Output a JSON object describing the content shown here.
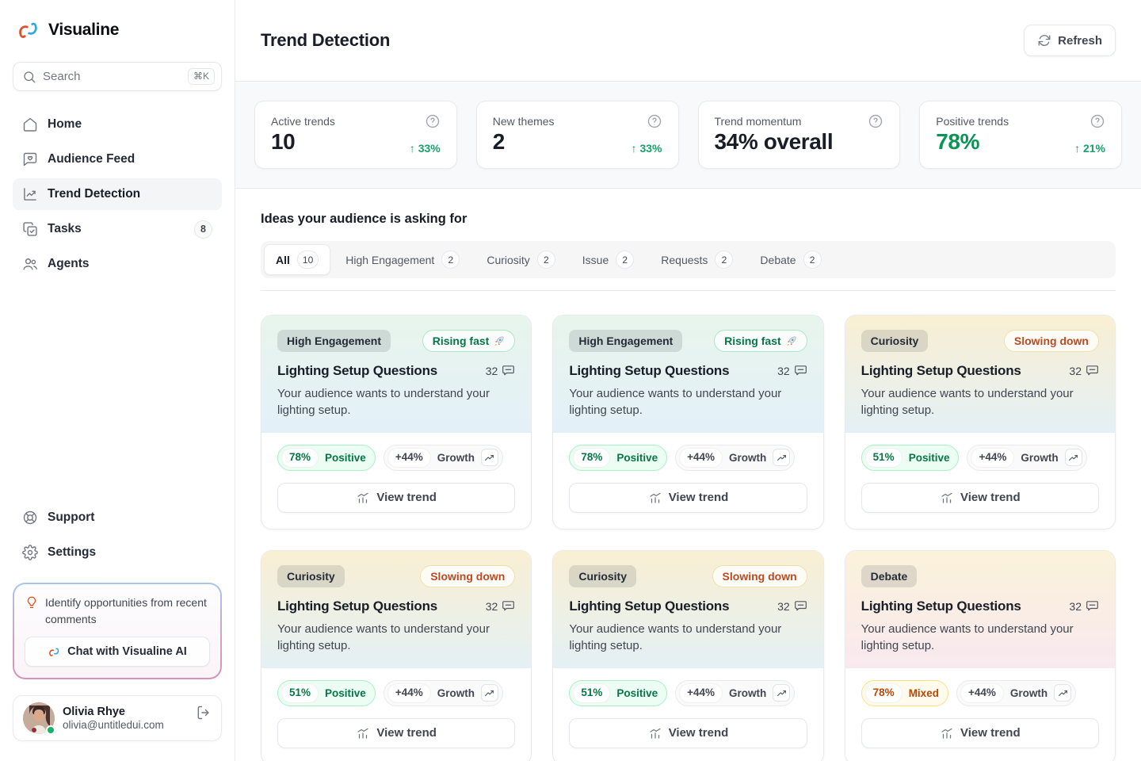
{
  "brand": {
    "name": "Visualine"
  },
  "search": {
    "placeholder": "Search",
    "shortcut": "⌘K"
  },
  "sidebar": {
    "items": [
      {
        "label": "Home",
        "icon": "home",
        "active": false,
        "badge": null
      },
      {
        "label": "Audience Feed",
        "icon": "audience-feed",
        "active": false,
        "badge": null
      },
      {
        "label": "Trend Detection",
        "icon": "trend-detection",
        "active": true,
        "badge": null
      },
      {
        "label": "Tasks",
        "icon": "tasks",
        "active": false,
        "badge": "8"
      },
      {
        "label": "Agents",
        "icon": "agents",
        "active": false,
        "badge": null
      }
    ],
    "footer_items": [
      {
        "label": "Support",
        "icon": "support"
      },
      {
        "label": "Settings",
        "icon": "settings"
      }
    ]
  },
  "ai_card": {
    "prompt": "Identify opportunities from recent comments",
    "button_label": "Chat with Visualine AI"
  },
  "user": {
    "name": "Olivia Rhye",
    "email": "olivia@untitledui.com",
    "status": "online"
  },
  "header": {
    "title": "Trend Detection",
    "refresh_label": "Refresh"
  },
  "stats": [
    {
      "label": "Active trends",
      "value": "10",
      "delta": "33%",
      "delta_dir": "up",
      "value_color": "dark"
    },
    {
      "label": "New themes",
      "value": "2",
      "delta": "33%",
      "delta_dir": "up",
      "value_color": "dark"
    },
    {
      "label": "Trend momentum",
      "value": "34% overall",
      "delta": null,
      "delta_dir": null,
      "value_color": "dark"
    },
    {
      "label": "Positive trends",
      "value": "78%",
      "delta": "21%",
      "delta_dir": "up",
      "value_color": "green"
    }
  ],
  "ideas": {
    "title": "Ideas your audience is asking for",
    "tabs": [
      {
        "label": "All",
        "count": "10",
        "active": true
      },
      {
        "label": "High Engagement",
        "count": "2",
        "active": false
      },
      {
        "label": "Curiosity",
        "count": "2",
        "active": false
      },
      {
        "label": "Issue",
        "count": "2",
        "active": false
      },
      {
        "label": "Requests",
        "count": "2",
        "active": false
      },
      {
        "label": "Debate",
        "count": "2",
        "active": false
      }
    ],
    "cards": [
      {
        "category": "High Engagement",
        "trend_label": "Rising fast",
        "trend_icon": "rocket",
        "trend_style": "up",
        "title": "Lighting Setup Questions",
        "comments": "32",
        "description": "Your audience wants to understand your lighting setup.",
        "sentiment_pct": "78%",
        "sentiment_label": "Positive",
        "sentiment_style": "positive",
        "growth_pct": "+44%",
        "growth_label": "Growth",
        "action_label": "View trend",
        "gradient": "green"
      },
      {
        "category": "High Engagement",
        "trend_label": "Rising fast",
        "trend_icon": "rocket",
        "trend_style": "up",
        "title": "Lighting Setup Questions",
        "comments": "32",
        "description": "Your audience wants to understand your lighting setup.",
        "sentiment_pct": "78%",
        "sentiment_label": "Positive",
        "sentiment_style": "positive",
        "growth_pct": "+44%",
        "growth_label": "Growth",
        "action_label": "View trend",
        "gradient": "green"
      },
      {
        "category": "Curiosity",
        "trend_label": "Slowing down",
        "trend_icon": null,
        "trend_style": "down",
        "title": "Lighting Setup Questions",
        "comments": "32",
        "description": "Your audience wants to understand your lighting setup.",
        "sentiment_pct": "51%",
        "sentiment_label": "Positive",
        "sentiment_style": "positive",
        "growth_pct": "+44%",
        "growth_label": "Growth",
        "action_label": "View trend",
        "gradient": "yellow-blue"
      },
      {
        "category": "Curiosity",
        "trend_label": "Slowing down",
        "trend_icon": null,
        "trend_style": "down",
        "title": "Lighting Setup Questions",
        "comments": "32",
        "description": "Your audience wants to understand your lighting setup.",
        "sentiment_pct": "51%",
        "sentiment_label": "Positive",
        "sentiment_style": "positive",
        "growth_pct": "+44%",
        "growth_label": "Growth",
        "action_label": "View trend",
        "gradient": "yellow-blue"
      },
      {
        "category": "Curiosity",
        "trend_label": "Slowing down",
        "trend_icon": null,
        "trend_style": "down",
        "title": "Lighting Setup Questions",
        "comments": "32",
        "description": "Your audience wants to understand your lighting setup.",
        "sentiment_pct": "51%",
        "sentiment_label": "Positive",
        "sentiment_style": "positive",
        "growth_pct": "+44%",
        "growth_label": "Growth",
        "action_label": "View trend",
        "gradient": "yellow-blue"
      },
      {
        "category": "Debate",
        "trend_label": null,
        "trend_icon": null,
        "trend_style": null,
        "title": "Lighting Setup Questions",
        "comments": "32",
        "description": "Your audience wants to understand your lighting setup.",
        "sentiment_pct": "78%",
        "sentiment_label": "Mixed",
        "sentiment_style": "mixed",
        "growth_pct": "+44%",
        "growth_label": "Growth",
        "action_label": "View trend",
        "gradient": "yellow-pink"
      }
    ]
  },
  "colors": {
    "accent_green": "#079455",
    "delta_green": "#17a06a",
    "positive_text": "#067647",
    "mixed_text": "#b54708",
    "slowing_text": "#ba4a22",
    "ai_border_top": "#a9c6ee",
    "ai_border_bottom": "#d892b9"
  }
}
